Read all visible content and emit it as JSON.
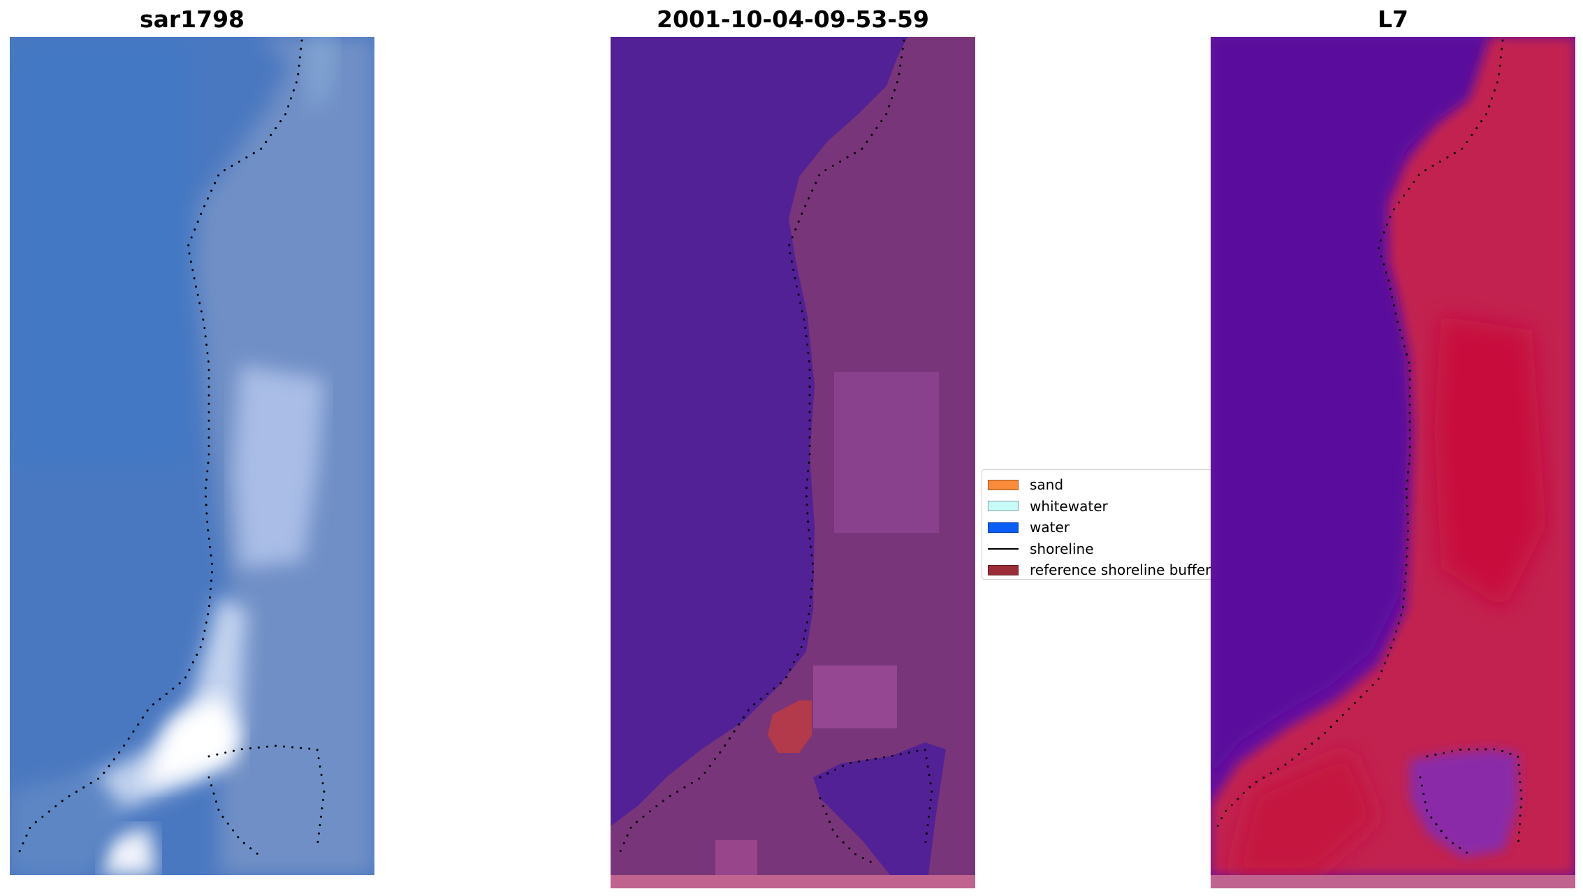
{
  "panels": [
    {
      "title": "sar1798",
      "kind": "rgb",
      "base_color": "#4f7fc4",
      "sand_color": "#9bb2da",
      "surf_color": "#ffffff"
    },
    {
      "title": "2001-10-04-09-53-59",
      "kind": "classified",
      "water_color": "#522196",
      "land_color": "#7a3679",
      "buffer_color": "#b33a4a",
      "strip_color": "#c0638f"
    },
    {
      "title": "L7",
      "kind": "index",
      "low_color": "#5a0aa0",
      "high_color": "#c01448",
      "strip_color": "#c0638f"
    }
  ],
  "legend": {
    "items": [
      {
        "label": "sand",
        "color": "#f98b3a",
        "marker": "patch"
      },
      {
        "label": "whitewater",
        "color": "#c8faf8",
        "marker": "patch"
      },
      {
        "label": "water",
        "color": "#0a5ef5",
        "marker": "patch"
      },
      {
        "label": "shoreline",
        "color": "#000000",
        "marker": "line"
      },
      {
        "label": "reference shoreline buffer",
        "color": "#9a2d38",
        "marker": "patch"
      }
    ]
  }
}
